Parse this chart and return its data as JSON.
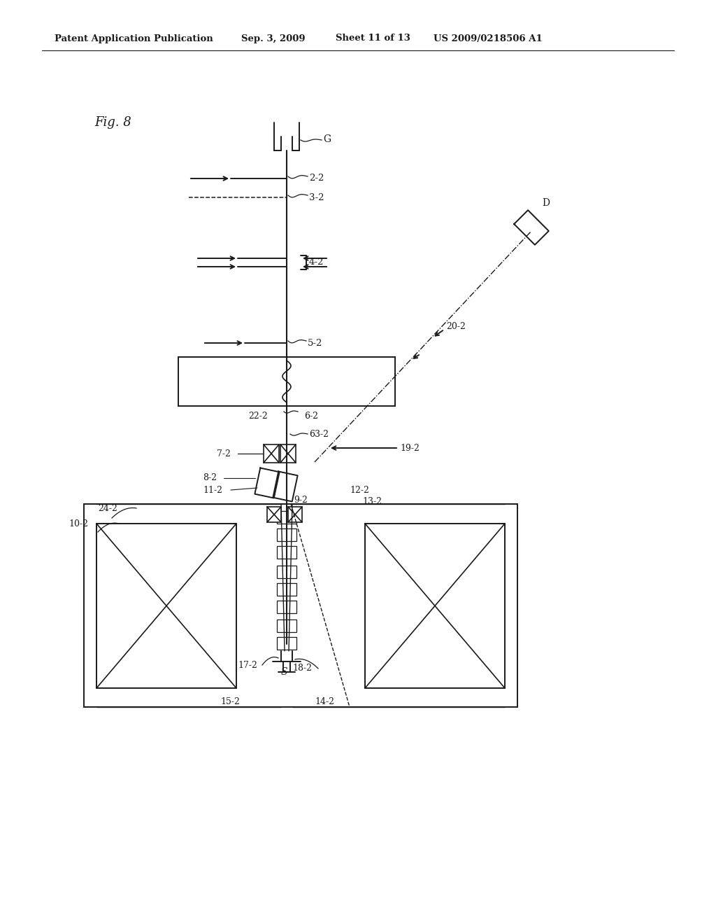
{
  "bg_color": "#ffffff",
  "line_color": "#1a1a1a",
  "header_text1": "Patent Application Publication",
  "header_text2": "Sep. 3, 2009",
  "header_text3": "Sheet 11 of 13",
  "header_text4": "US 2009/0218506 A1",
  "fig_label": "Fig. 8"
}
